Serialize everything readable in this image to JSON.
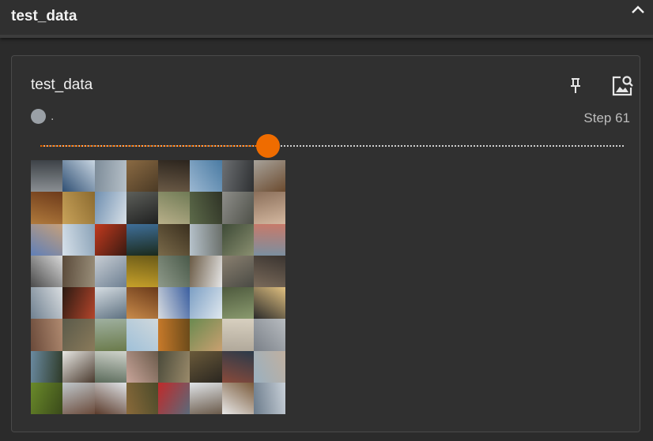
{
  "header": {
    "title": "test_data"
  },
  "card": {
    "title": "test_data",
    "run_name": ".",
    "step_label": "Step 61",
    "slider_fraction": 0.39,
    "colors": {
      "accent": "#ef6c00",
      "run_dot": "#9aa0a6"
    },
    "icons": {
      "pin": "pin-icon",
      "image": "image-search-icon",
      "collapse": "chevron-up-icon"
    }
  }
}
